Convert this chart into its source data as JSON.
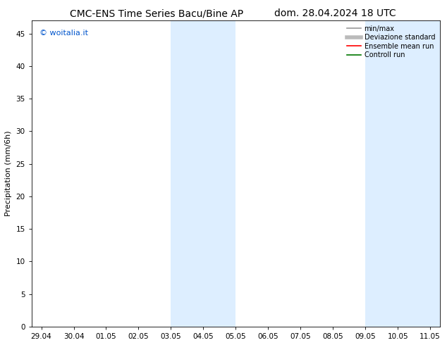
{
  "title_left": "CMC-ENS Time Series Bacu/Bine AP",
  "title_right": "dom. 28.04.2024 18 UTC",
  "ylabel": "Precipitation (mm/6h)",
  "watermark": "© woitalia.it",
  "watermark_color": "#0055cc",
  "x_tick_labels": [
    "29.04",
    "30.04",
    "01.05",
    "02.05",
    "03.05",
    "04.05",
    "05.05",
    "06.05",
    "07.05",
    "08.05",
    "09.05",
    "10.05",
    "11.05"
  ],
  "x_tick_positions": [
    0,
    1,
    2,
    3,
    4,
    5,
    6,
    7,
    8,
    9,
    10,
    11,
    12
  ],
  "ylim": [
    0,
    47
  ],
  "yticks": [
    0,
    5,
    10,
    15,
    20,
    25,
    30,
    35,
    40,
    45
  ],
  "xlim": [
    -0.3,
    12.3
  ],
  "bg_color": "#ffffff",
  "plot_bg_color": "#ffffff",
  "shaded_regions": [
    {
      "x_start": 4.0,
      "x_end": 6.0,
      "color": "#ddeeff"
    },
    {
      "x_start": 10.0,
      "x_end": 12.3,
      "color": "#ddeeff"
    }
  ],
  "legend_entries": [
    {
      "label": "min/max",
      "color": "#999999",
      "lw": 1.2,
      "style": "solid"
    },
    {
      "label": "Deviazione standard",
      "color": "#bbbbbb",
      "lw": 4,
      "style": "solid"
    },
    {
      "label": "Ensemble mean run",
      "color": "#ff0000",
      "lw": 1.2,
      "style": "solid"
    },
    {
      "label": "Controll run",
      "color": "#007700",
      "lw": 1.2,
      "style": "solid"
    }
  ],
  "title_fontsize": 10,
  "tick_fontsize": 7.5,
  "ylabel_fontsize": 8,
  "legend_fontsize": 7,
  "watermark_fontsize": 8
}
